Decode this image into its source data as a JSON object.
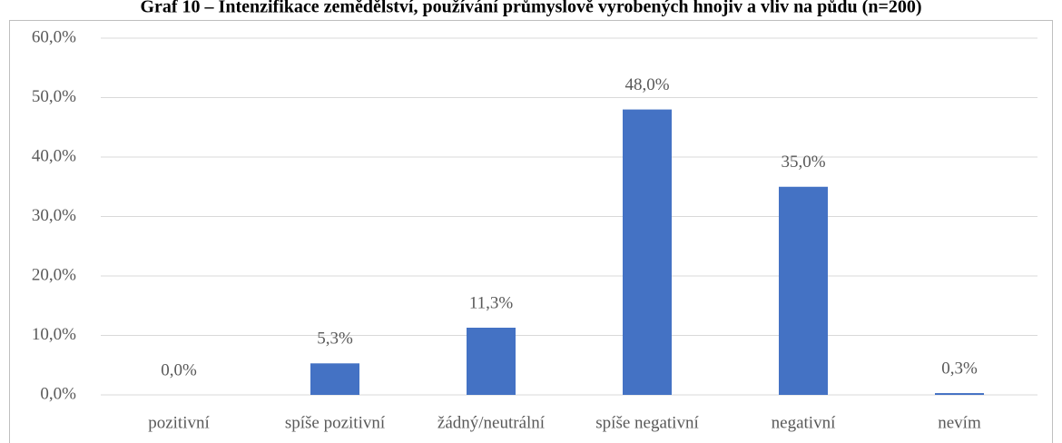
{
  "chart_data": {
    "type": "bar",
    "title": "Graf 10 – Intenzifikace zemědělství, používání průmyslově vyrobených hnojiv a vliv na půdu (n=200)",
    "categories": [
      "pozitivní",
      "spíše pozitivní",
      "žádný/neutrální",
      "spíše negativní",
      "negativní",
      "nevím"
    ],
    "values": [
      0,
      5.3,
      11.3,
      48,
      35,
      0.3
    ],
    "value_labels": [
      "0,0%",
      "5,3%",
      "11,3%",
      "48,0%",
      "35,0%",
      "0,3%"
    ],
    "color": "#4472c4",
    "ylim": [
      0,
      60
    ],
    "yticks": [
      {
        "value": 0,
        "label": "0,0%"
      },
      {
        "value": 10,
        "label": "10,0%"
      },
      {
        "value": 20,
        "label": "20,0%"
      },
      {
        "value": 30,
        "label": "30,0%"
      },
      {
        "value": 40,
        "label": "40,0%"
      },
      {
        "value": 50,
        "label": "50,0%"
      },
      {
        "value": 60,
        "label": "60,0%"
      }
    ],
    "grid": true
  }
}
